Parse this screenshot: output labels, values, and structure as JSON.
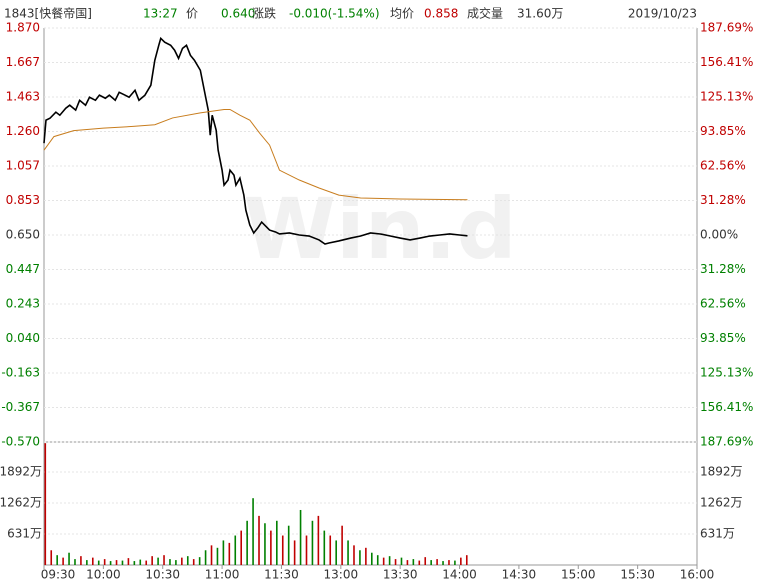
{
  "header": {
    "code": "1843[快餐帝国]",
    "time": "13:27",
    "price_label": "价",
    "price": "0.640",
    "change_label": "涨跌",
    "change": "-0.010(-1.54%)",
    "avg_label": "均价",
    "avg": "0.858",
    "volume_label": "成交量",
    "volume": "31.60万",
    "date": "2019/10/23",
    "watermark": "Win.d"
  },
  "chart_data": [
    {
      "type": "line",
      "xlim": [
        0,
        330
      ],
      "xticks": [
        {
          "value": 0,
          "label": "09:30"
        },
        {
          "value": 30,
          "label": "10:00"
        },
        {
          "value": 60,
          "label": "10:30"
        },
        {
          "value": 90,
          "label": "11:00"
        },
        {
          "value": 120,
          "label": "11:30"
        },
        {
          "value": 150,
          "label": "13:00"
        },
        {
          "value": 180,
          "label": "13:30"
        },
        {
          "value": 210,
          "label": "14:00"
        },
        {
          "value": 240,
          "label": "14:30"
        },
        {
          "value": 270,
          "label": "15:00"
        },
        {
          "value": 300,
          "label": "15:30"
        },
        {
          "value": 330,
          "label": "16:00"
        }
      ],
      "ylim": [
        -0.57,
        1.87
      ],
      "yticks": [
        {
          "value": 1.87,
          "label": "1.870"
        },
        1.667,
        1.463,
        {
          "value": 1.26,
          "label": "1.260"
        },
        1.057,
        0.853,
        {
          "value": 0.65,
          "label": "0.650"
        },
        0.447,
        0.243,
        {
          "value": 0.04,
          "label": "0.040"
        },
        -0.163,
        -0.367,
        {
          "value": -0.57,
          "label": "-0.570"
        }
      ],
      "y2lim": [
        -187.69,
        187.69
      ],
      "y2ticks": [
        {
          "value": 187.69,
          "label": "187.69%"
        },
        {
          "value": 156.41,
          "label": "156.41%"
        },
        {
          "value": 125.13,
          "label": "125.13%"
        },
        {
          "value": 93.85,
          "label": "93.85%"
        },
        {
          "value": 62.56,
          "label": "62.56%"
        },
        {
          "value": 31.28,
          "label": "31.28%"
        },
        {
          "value": 0,
          "label": "0.00%"
        },
        {
          "value": -31.28,
          "label": "31.28%"
        },
        {
          "value": -62.56,
          "label": "62.56%"
        },
        {
          "value": -93.85,
          "label": "93.85%"
        },
        {
          "value": -125.13,
          "label": "125.13%"
        },
        {
          "value": -156.41,
          "label": "156.41%"
        },
        {
          "value": -187.69,
          "label": "187.69%"
        }
      ],
      "up_color": "#c00000",
      "down_color": "#008000",
      "flat_color": "#333333",
      "series": [
        {
          "color": "#000000",
          "x": [
            0,
            1,
            3,
            6,
            8,
            11,
            13,
            16,
            18,
            21,
            23,
            26,
            28,
            31,
            33,
            36,
            38,
            41,
            43,
            46,
            48,
            51,
            54,
            56,
            58,
            59,
            61,
            64,
            66,
            68,
            70,
            72,
            74,
            76,
            79,
            81,
            83,
            84,
            85,
            87,
            88,
            90,
            91,
            93,
            94,
            96,
            97,
            99,
            101,
            102,
            104,
            106,
            108,
            110,
            112,
            114,
            117,
            119,
            124,
            129,
            134,
            139,
            142,
            144,
            149,
            155,
            160,
            165,
            170,
            175,
            180,
            185,
            190,
            195,
            200,
            205,
            210,
            214
          ],
          "values": [
            1.191,
            1.327,
            1.338,
            1.374,
            1.356,
            1.397,
            1.415,
            1.386,
            1.444,
            1.415,
            1.462,
            1.444,
            1.474,
            1.456,
            1.474,
            1.444,
            1.491,
            1.474,
            1.462,
            1.503,
            1.444,
            1.474,
            1.533,
            1.68,
            1.768,
            1.809,
            1.786,
            1.768,
            1.739,
            1.691,
            1.75,
            1.768,
            1.709,
            1.68,
            1.621,
            1.503,
            1.386,
            1.238,
            1.356,
            1.268,
            1.15,
            1.032,
            0.944,
            0.974,
            1.032,
            1.003,
            0.944,
            0.985,
            0.885,
            0.797,
            0.709,
            0.662,
            0.691,
            0.726,
            0.703,
            0.679,
            0.668,
            0.656,
            0.662,
            0.65,
            0.644,
            0.621,
            0.597,
            0.603,
            0.615,
            0.632,
            0.644,
            0.662,
            0.656,
            0.644,
            0.632,
            0.621,
            0.632,
            0.644,
            0.65,
            0.656,
            0.65,
            0.645
          ]
        },
        {
          "color": "#c87d1e",
          "x": [
            0,
            5,
            15,
            30,
            45,
            56,
            65,
            79,
            91,
            94,
            99,
            104,
            109,
            114,
            119,
            129,
            139,
            149,
            160,
            180,
            214
          ],
          "values": [
            1.15,
            1.23,
            1.265,
            1.28,
            1.29,
            1.3,
            1.34,
            1.37,
            1.39,
            1.39,
            1.356,
            1.327,
            1.25,
            1.18,
            1.032,
            0.974,
            0.927,
            0.885,
            0.868,
            0.862,
            0.858
          ]
        }
      ]
    },
    {
      "type": "bar",
      "xlim": [
        0,
        330
      ],
      "ylim": [
        0,
        2504
      ],
      "yticks": [
        {
          "value": 1892,
          "label": "1892万"
        },
        {
          "value": 1262,
          "label": "1262万"
        },
        {
          "value": 631,
          "label": "631万"
        }
      ],
      "x": [
        0,
        3,
        6,
        9,
        12,
        15,
        18,
        21,
        24,
        27,
        30,
        33,
        36,
        39,
        42,
        45,
        48,
        51,
        54,
        57,
        60,
        63,
        66,
        69,
        72,
        75,
        78,
        81,
        84,
        87,
        90,
        93,
        96,
        99,
        102,
        105,
        108,
        111,
        114,
        117,
        120,
        123,
        126,
        129,
        132,
        135,
        138,
        141,
        144,
        147,
        150,
        153,
        156,
        159,
        162,
        165,
        168,
        171,
        174,
        177,
        180,
        183,
        186,
        189,
        192,
        195,
        198,
        201,
        204,
        207,
        210,
        213
      ],
      "values": [
        2480,
        300,
        200,
        150,
        250,
        120,
        180,
        100,
        150,
        90,
        120,
        80,
        100,
        90,
        140,
        80,
        110,
        90,
        180,
        150,
        200,
        120,
        100,
        150,
        180,
        120,
        160,
        300,
        400,
        350,
        500,
        450,
        600,
        700,
        900,
        1360,
        1000,
        850,
        700,
        900,
        600,
        800,
        500,
        1120,
        600,
        900,
        1000,
        700,
        600,
        500,
        800,
        500,
        400,
        300,
        350,
        250,
        200,
        150,
        180,
        120,
        150,
        100,
        120,
        90,
        160,
        100,
        120,
        80,
        100,
        90,
        150,
        200
      ],
      "colors": [
        "#c00000",
        "#c00000",
        "#008000",
        "#c00000",
        "#008000",
        "#008000",
        "#c00000",
        "#008000",
        "#c00000",
        "#008000",
        "#c00000",
        "#008000",
        "#c00000",
        "#008000",
        "#c00000",
        "#008000",
        "#008000",
        "#c00000",
        "#c00000",
        "#008000",
        "#c00000",
        "#008000",
        "#008000",
        "#c00000",
        "#008000",
        "#c00000",
        "#008000",
        "#008000",
        "#c00000",
        "#008000",
        "#008000",
        "#c00000",
        "#008000",
        "#c00000",
        "#008000",
        "#008000",
        "#c00000",
        "#008000",
        "#c00000",
        "#008000",
        "#c00000",
        "#008000",
        "#c00000",
        "#008000",
        "#c00000",
        "#008000",
        "#c00000",
        "#008000",
        "#c00000",
        "#008000",
        "#c00000",
        "#008000",
        "#c00000",
        "#008000",
        "#c00000",
        "#008000",
        "#008000",
        "#c00000",
        "#008000",
        "#c00000",
        "#008000",
        "#c00000",
        "#008000",
        "#c00000",
        "#c00000",
        "#008000",
        "#c00000",
        "#008000",
        "#c00000",
        "#008000",
        "#c00000",
        "#c00000"
      ]
    }
  ]
}
